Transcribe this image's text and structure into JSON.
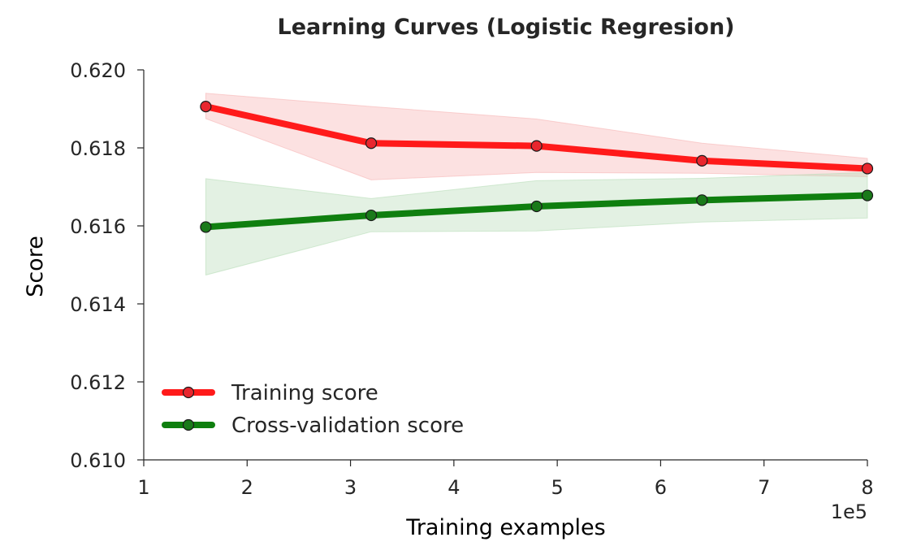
{
  "chart_data": {
    "type": "line",
    "title": "Learning Curves (Logistic Regresion)",
    "xlabel": "Training examples",
    "ylabel": "Score",
    "x_offset_label": "1e5",
    "xlim": [
      1,
      8
    ],
    "ylim": [
      0.61,
      0.62
    ],
    "x_ticks": [
      1,
      2,
      3,
      4,
      5,
      6,
      7,
      8
    ],
    "x_tick_labels": [
      "1",
      "2",
      "3",
      "4",
      "5",
      "6",
      "7",
      "8"
    ],
    "y_ticks": [
      0.61,
      0.612,
      0.614,
      0.616,
      0.618,
      0.62
    ],
    "y_tick_labels": [
      "0.610",
      "0.612",
      "0.614",
      "0.616",
      "0.618",
      "0.620"
    ],
    "x": [
      1.6,
      3.2,
      4.8,
      6.4,
      8.0
    ],
    "legend_position": "lower-left",
    "grid": false,
    "series": [
      {
        "name": "Training score",
        "color": "#ff1a1a",
        "marker_fill": "#e8262e",
        "band_color": "#f7b5b5",
        "values": [
          0.61906,
          0.61812,
          0.61805,
          0.61767,
          0.61747
        ],
        "band_lower": [
          0.61875,
          0.61718,
          0.61737,
          0.61735,
          0.61726
        ],
        "band_upper": [
          0.6194,
          0.61906,
          0.61874,
          0.61812,
          0.61773
        ]
      },
      {
        "name": "Cross-validation score",
        "color": "#0f7f0f",
        "marker_fill": "#1a7a1a",
        "band_color": "#b9ddb9",
        "values": [
          0.61597,
          0.61627,
          0.6165,
          0.61666,
          0.61678
        ],
        "band_lower": [
          0.61474,
          0.61585,
          0.61587,
          0.6161,
          0.6162
        ],
        "band_upper": [
          0.61721,
          0.6167,
          0.61716,
          0.61722,
          0.61737
        ]
      }
    ]
  }
}
